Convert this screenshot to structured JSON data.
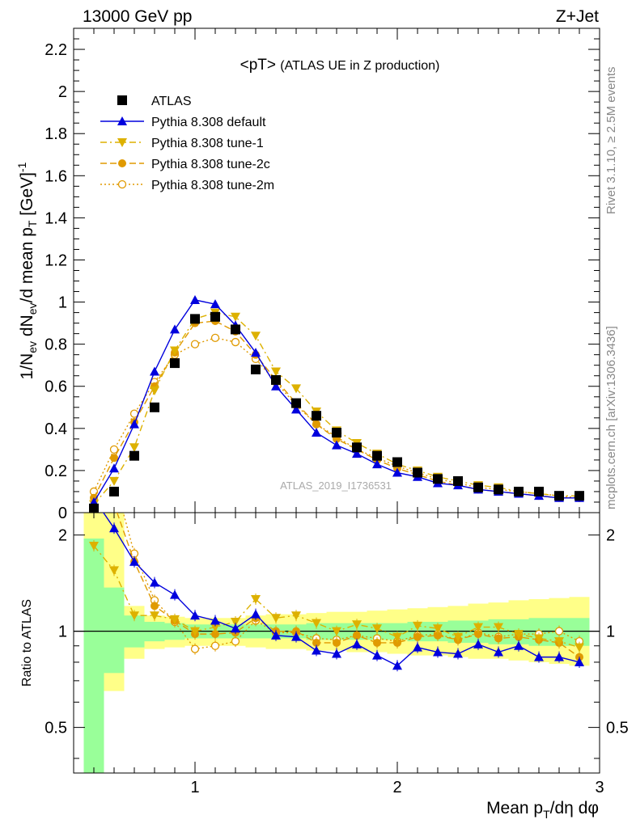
{
  "header": {
    "left": "13000 GeV pp",
    "right": "Z+Jet"
  },
  "side": {
    "rivet": "Rivet 3.1.10, ≥ 2.5M events",
    "mcplots": "mcplots.cern.ch [arXiv:1306.3436]"
  },
  "chart_data": {
    "type": "line",
    "title": "<pT>",
    "subtitle": "(ATLAS UE in Z production)",
    "analysis_id": "ATLAS_2019_I1736531",
    "xlabel": "Mean p_T/dη dφ",
    "ylabel_main": "1/N_ev dN_ev/d mean p_T [GeV]^-1",
    "ylabel_ratio": "Ratio to ATLAS",
    "xlim": [
      0.4,
      3.0
    ],
    "ylim_main": [
      0,
      2.3
    ],
    "ylim_ratio": [
      0.36,
      2.35
    ],
    "x_ticks": [
      "1",
      "2",
      "3"
    ],
    "y_ticks_main": [
      "0",
      "0.2",
      "0.4",
      "0.6",
      "0.8",
      "1",
      "1.2",
      "1.4",
      "1.6",
      "1.8",
      "2",
      "2.2"
    ],
    "y_ticks_ratio": [
      "0.5",
      "1",
      "2"
    ],
    "x": [
      0.5,
      0.6,
      0.7,
      0.8,
      0.9,
      1.0,
      1.1,
      1.2,
      1.3,
      1.4,
      1.5,
      1.6,
      1.7,
      1.8,
      1.9,
      2.0,
      2.1,
      2.2,
      2.3,
      2.4,
      2.5,
      2.6,
      2.7,
      2.8,
      2.9
    ],
    "legend_position": "top-left",
    "series": [
      {
        "name": "ATLAS",
        "color": "#000000",
        "marker": "square",
        "values": [
          0.02,
          0.1,
          0.27,
          0.5,
          0.71,
          0.92,
          0.93,
          0.87,
          0.68,
          0.63,
          0.52,
          0.46,
          0.38,
          0.31,
          0.27,
          0.24,
          0.19,
          0.16,
          0.15,
          0.12,
          0.11,
          0.1,
          0.1,
          0.08,
          0.08
        ],
        "ratio": [
          1,
          1,
          1,
          1,
          1,
          1,
          1,
          1,
          1,
          1,
          1,
          1,
          1,
          1,
          1,
          1,
          1,
          1,
          1,
          1,
          1,
          1,
          1,
          1,
          1
        ]
      },
      {
        "name": "Pythia 8.308 default",
        "color": "#0000dd",
        "marker": "triangle-up",
        "dash": "",
        "values": [
          0.05,
          0.21,
          0.42,
          0.67,
          0.87,
          1.01,
          0.99,
          0.89,
          0.76,
          0.6,
          0.49,
          0.38,
          0.32,
          0.28,
          0.23,
          0.19,
          0.17,
          0.14,
          0.13,
          0.11,
          0.1,
          0.09,
          0.08,
          0.07,
          0.07
        ],
        "ratio": [
          2.6,
          2.1,
          1.65,
          1.42,
          1.3,
          1.12,
          1.08,
          1.02,
          1.13,
          0.97,
          0.96,
          0.87,
          0.85,
          0.91,
          0.84,
          0.78,
          0.89,
          0.86,
          0.85,
          0.91,
          0.86,
          0.9,
          0.83,
          0.83,
          0.8
        ]
      },
      {
        "name": "Pythia 8.308 tune-1",
        "color": "#ddb100",
        "marker": "triangle-down",
        "dash": "8,4,2,4",
        "values": [
          0.04,
          0.15,
          0.31,
          0.58,
          0.77,
          0.92,
          0.95,
          0.93,
          0.84,
          0.67,
          0.59,
          0.48,
          0.39,
          0.33,
          0.28,
          0.23,
          0.2,
          0.17,
          0.15,
          0.13,
          0.12,
          0.1,
          0.09,
          0.08,
          0.08
        ],
        "ratio": [
          1.85,
          1.55,
          1.12,
          1.12,
          1.09,
          1.0,
          1.03,
          1.07,
          1.26,
          1.1,
          1.12,
          1.06,
          1.0,
          1.05,
          1.02,
          0.96,
          1.04,
          1.02,
          0.96,
          1.03,
          1.03,
          0.98,
          0.95,
          0.93,
          0.89
        ]
      },
      {
        "name": "Pythia 8.308 tune-2c",
        "color": "#e09a00",
        "marker": "circle-filled",
        "dash": "8,4",
        "values": [
          0.07,
          0.26,
          0.43,
          0.6,
          0.76,
          0.9,
          0.91,
          0.86,
          0.75,
          0.63,
          0.52,
          0.42,
          0.35,
          0.3,
          0.25,
          0.21,
          0.18,
          0.15,
          0.13,
          0.11,
          0.1,
          0.09,
          0.08,
          0.07,
          0.07
        ],
        "ratio": [
          3.2,
          2.5,
          1.65,
          1.2,
          1.08,
          0.98,
          0.98,
          0.99,
          1.1,
          1.0,
          1.0,
          0.92,
          0.92,
          0.97,
          0.92,
          0.92,
          0.96,
          0.97,
          0.94,
          0.98,
          0.95,
          0.96,
          0.94,
          0.92,
          0.83
        ]
      },
      {
        "name": "Pythia 8.308 tune-2m",
        "color": "#e09a00",
        "marker": "circle-open",
        "dash": "2,3",
        "values": [
          0.1,
          0.3,
          0.47,
          0.62,
          0.75,
          0.8,
          0.83,
          0.81,
          0.73,
          0.62,
          0.51,
          0.42,
          0.36,
          0.3,
          0.26,
          0.22,
          0.19,
          0.16,
          0.14,
          0.12,
          0.11,
          0.1,
          0.09,
          0.08,
          0.07
        ],
        "ratio": [
          4.5,
          3.0,
          1.75,
          1.25,
          1.07,
          0.88,
          0.9,
          0.93,
          1.08,
          0.99,
          0.99,
          0.95,
          0.94,
          0.97,
          0.95,
          0.93,
          0.97,
          0.98,
          0.94,
          0.99,
          0.96,
          0.98,
          0.98,
          1.0,
          0.93
        ]
      }
    ],
    "bands": {
      "green_hi": [
        1.95,
        1.37,
        1.12,
        1.07,
        1.06,
        1.05,
        1.05,
        1.05,
        1.05,
        1.05,
        1.05,
        1.06,
        1.06,
        1.06,
        1.06,
        1.06,
        1.07,
        1.07,
        1.08,
        1.08,
        1.09,
        1.09,
        1.1,
        1.1,
        1.1
      ],
      "green_lo": [
        0.35,
        0.74,
        0.89,
        0.93,
        0.94,
        0.95,
        0.95,
        0.95,
        0.95,
        0.95,
        0.95,
        0.94,
        0.94,
        0.94,
        0.94,
        0.94,
        0.93,
        0.93,
        0.92,
        0.92,
        0.91,
        0.91,
        0.9,
        0.9,
        0.9
      ],
      "yellow_hi": [
        2.4,
        2.4,
        1.2,
        1.12,
        1.11,
        1.1,
        1.1,
        1.1,
        1.12,
        1.13,
        1.13,
        1.14,
        1.15,
        1.15,
        1.16,
        1.17,
        1.18,
        1.19,
        1.2,
        1.22,
        1.23,
        1.25,
        1.26,
        1.27,
        1.28
      ],
      "yellow_lo": [
        0.35,
        0.65,
        0.82,
        0.88,
        0.89,
        0.9,
        0.9,
        0.9,
        0.89,
        0.88,
        0.88,
        0.87,
        0.87,
        0.86,
        0.86,
        0.85,
        0.84,
        0.84,
        0.83,
        0.82,
        0.82,
        0.81,
        0.8,
        0.79,
        0.78
      ]
    }
  }
}
